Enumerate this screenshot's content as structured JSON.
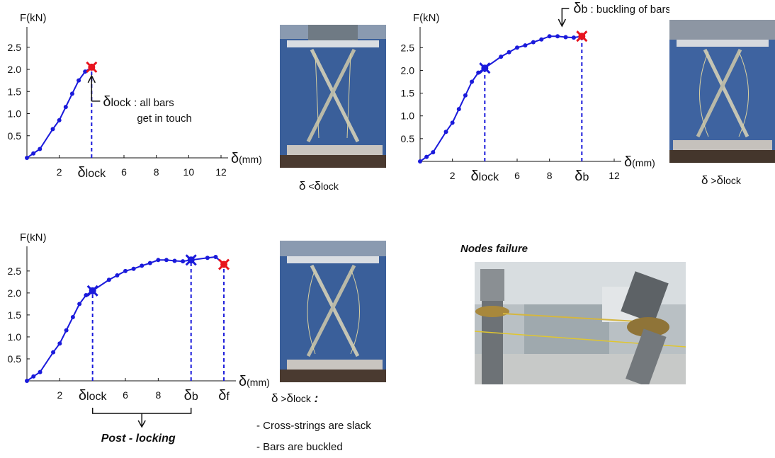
{
  "chart_data": [
    {
      "type": "line",
      "ylabel": "F(kN)",
      "xlabel_symbol": "δ",
      "xlabel_unit": "(mm)",
      "x_ticks": [
        {
          "x": 2,
          "label": "2"
        },
        {
          "x": 4,
          "label": "δ",
          "sub": "lock"
        },
        {
          "x": 6,
          "label": "6"
        },
        {
          "x": 8,
          "label": "8"
        },
        {
          "x": 10,
          "label": "10"
        },
        {
          "x": 12,
          "label": "12"
        }
      ],
      "y_ticks": [
        0.5,
        1.0,
        1.5,
        2.0,
        2.5
      ],
      "xlim": [
        0,
        12
      ],
      "ylim": [
        0,
        2.8
      ],
      "series": [
        {
          "color": "#1a1adb",
          "x": [
            0,
            0.4,
            0.8,
            1.6,
            2.0,
            2.4,
            2.8,
            3.2,
            3.6,
            4.0
          ],
          "y": [
            0,
            0.1,
            0.2,
            0.65,
            0.85,
            1.15,
            1.45,
            1.75,
            1.95,
            2.05
          ]
        }
      ],
      "markers": [
        {
          "x": 4.0,
          "y": 2.05,
          "color": "#e8141e"
        }
      ],
      "dashed_at": [
        4.0
      ],
      "annotation": {
        "symbol": "δ",
        "sub": "lock",
        "line1": " : all bars",
        "line2": "get in touch"
      }
    },
    {
      "type": "line",
      "ylabel": "F(kN)",
      "xlabel_symbol": "δ",
      "xlabel_unit": "(mm)",
      "x_ticks": [
        {
          "x": 2,
          "label": "2"
        },
        {
          "x": 4,
          "label": "δ",
          "sub": "lock"
        },
        {
          "x": 6,
          "label": "6"
        },
        {
          "x": 8,
          "label": "8"
        },
        {
          "x": 10,
          "label": "δ",
          "sub": "b"
        },
        {
          "x": 12,
          "label": "12"
        }
      ],
      "y_ticks": [
        0.5,
        1.0,
        1.5,
        2.0,
        2.5
      ],
      "xlim": [
        0,
        12
      ],
      "ylim": [
        0,
        2.8
      ],
      "series": [
        {
          "color": "#1a1adb",
          "x": [
            0,
            0.4,
            0.8,
            1.6,
            2.0,
            2.4,
            2.8,
            3.2,
            3.6,
            4.0,
            5.0,
            5.5,
            6.0,
            6.5,
            7.0,
            7.5,
            8.0,
            8.5,
            9.0,
            9.5,
            10.0
          ],
          "y": [
            0,
            0.1,
            0.2,
            0.65,
            0.85,
            1.15,
            1.45,
            1.75,
            1.95,
            2.05,
            2.3,
            2.4,
            2.5,
            2.55,
            2.62,
            2.68,
            2.75,
            2.75,
            2.73,
            2.72,
            2.75
          ]
        }
      ],
      "markers": [
        {
          "x": 4.0,
          "y": 2.05,
          "color": "#1a1adb"
        },
        {
          "x": 10.0,
          "y": 2.75,
          "color": "#e8141e"
        }
      ],
      "dashed_at": [
        4.0,
        10.0
      ],
      "annotation": {
        "symbol": "δ",
        "sub": "b",
        "line1": " : buckling of bars"
      }
    },
    {
      "type": "line",
      "ylabel": "F(kN)",
      "xlabel_symbol": "δ",
      "xlabel_unit": "(mm)",
      "x_ticks": [
        {
          "x": 2,
          "label": "2"
        },
        {
          "x": 4,
          "label": "δ",
          "sub": "lock"
        },
        {
          "x": 6,
          "label": "6"
        },
        {
          "x": 8,
          "label": "8"
        },
        {
          "x": 10,
          "label": "δ",
          "sub": "b"
        },
        {
          "x": 12,
          "label": "δ",
          "sub": "f"
        }
      ],
      "y_ticks": [
        0.5,
        1.0,
        1.5,
        2.0,
        2.5
      ],
      "xlim": [
        0,
        12.3
      ],
      "ylim": [
        0,
        2.9
      ],
      "series": [
        {
          "color": "#1a1adb",
          "x": [
            0,
            0.4,
            0.8,
            1.6,
            2.0,
            2.4,
            2.8,
            3.2,
            3.6,
            4.0,
            5.0,
            5.5,
            6.0,
            6.5,
            7.0,
            7.5,
            8.0,
            8.5,
            9.0,
            9.5,
            10.0,
            11.0,
            11.5,
            12.0
          ],
          "y": [
            0,
            0.1,
            0.2,
            0.65,
            0.85,
            1.15,
            1.45,
            1.75,
            1.95,
            2.05,
            2.3,
            2.4,
            2.5,
            2.55,
            2.62,
            2.68,
            2.75,
            2.75,
            2.73,
            2.72,
            2.75,
            2.8,
            2.82,
            2.65
          ]
        }
      ],
      "markers": [
        {
          "x": 4.0,
          "y": 2.05,
          "color": "#1a1adb"
        },
        {
          "x": 10.0,
          "y": 2.75,
          "color": "#1a1adb"
        },
        {
          "x": 12.0,
          "y": 2.65,
          "color": "#e8141e"
        }
      ],
      "dashed_at": [
        4.0,
        10.0,
        12.0
      ],
      "bracket": {
        "label": "Post - locking"
      }
    }
  ],
  "photos": {
    "photo1_caption": {
      "a": "δ",
      "rel": " <",
      "b": "δ",
      "sub": "lock"
    },
    "photo2_caption": {
      "a": "δ",
      "rel": " >",
      "b": "δ",
      "sub": "lock"
    },
    "photo3_caption": {
      "a": "δ",
      "rel": " >",
      "b": "δ",
      "sub": "lock",
      "colon": " :"
    },
    "notes": [
      "- Cross-strings are slack",
      "- Bars are buckled"
    ],
    "failure_title": "Nodes failure"
  }
}
